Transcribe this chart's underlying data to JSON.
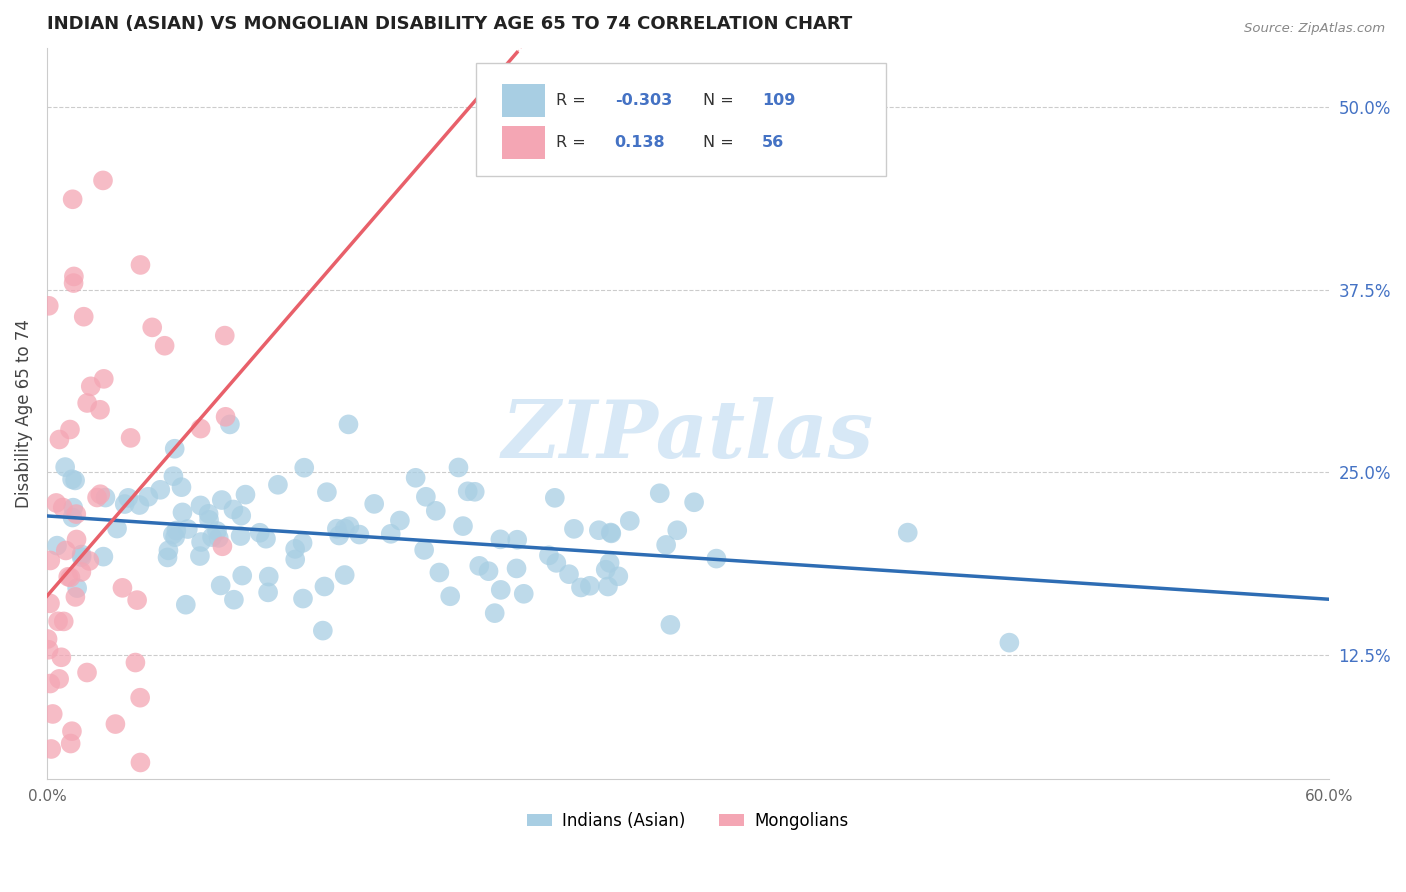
{
  "title": "INDIAN (ASIAN) VS MONGOLIAN DISABILITY AGE 65 TO 74 CORRELATION CHART",
  "source": "Source: ZipAtlas.com",
  "ylabel": "Disability Age 65 to 74",
  "xlim": [
    0.0,
    0.6
  ],
  "ylim": [
    0.04,
    0.54
  ],
  "xticks": [
    0.0,
    0.1,
    0.2,
    0.3,
    0.4,
    0.5,
    0.6
  ],
  "xticklabels": [
    "0.0%",
    "",
    "",
    "",
    "",
    "",
    "60.0%"
  ],
  "yticks": [
    0.125,
    0.25,
    0.375,
    0.5
  ],
  "yticklabels": [
    "12.5%",
    "25.0%",
    "37.5%",
    "50.0%"
  ],
  "indian_color": "#A8CEE3",
  "mongolian_color": "#F4A6B4",
  "indian_line_color": "#2E6DB4",
  "mongolian_line_color": "#E8606A",
  "R_indian": -0.303,
  "N_indian": 109,
  "R_mongolian": 0.138,
  "N_mongolian": 56,
  "legend_labels": [
    "Indians (Asian)",
    "Mongolians"
  ],
  "background_color": "#FFFFFF",
  "grid_color": "#CCCCCC",
  "title_color": "#333333",
  "stat_color": "#4472C4",
  "watermark": "ZIPatlas",
  "watermark_color": "#D0E4F5"
}
